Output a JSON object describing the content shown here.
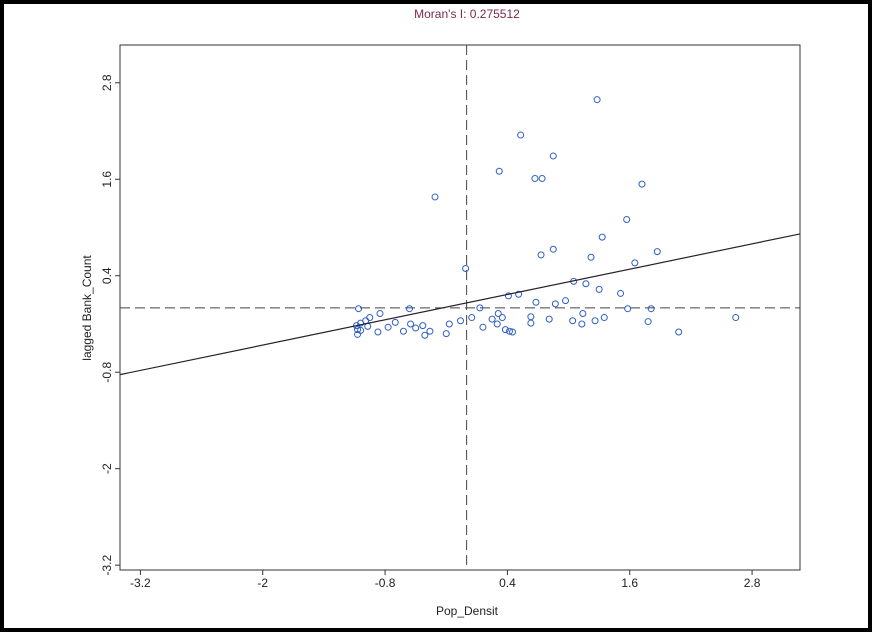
{
  "chart_data": {
    "type": "scatter",
    "title": "Moran's I: 0.275512",
    "x_label": "Pop_Densit",
    "y_label": "lagged Bank_Count",
    "xlim": [
      -3.4,
      3.27
    ],
    "ylim": [
      -3.26,
      3.27
    ],
    "xticks": [
      -3.2,
      -2,
      -0.8,
      0.4,
      1.6,
      2.8
    ],
    "yticks": [
      -3.2,
      -2,
      -0.8,
      0.4,
      1.6,
      2.8
    ],
    "color": "#2f5fc4",
    "x": [
      1.28,
      0.53,
      0.85,
      0.32,
      0.67,
      0.74,
      -0.31,
      1.72,
      1.57,
      1.33,
      0.85,
      0.73,
      -0.01,
      1.22,
      1.65,
      1.87,
      1.05,
      1.17,
      1.3,
      1.51,
      0.41,
      0.51,
      0.68,
      0.97,
      0.87,
      0.13,
      0.31,
      1.58,
      1.81,
      2.64,
      -0.56,
      -1.06,
      -0.85,
      -0.95,
      -0.99,
      -1.04,
      -0.55,
      -0.43,
      -0.06,
      -0.17,
      0.05,
      0.25,
      0.3,
      0.35,
      0.63,
      0.63,
      0.81,
      1.04,
      1.13,
      1.14,
      1.26,
      1.35,
      1.78,
      2.08,
      0.45,
      0.42,
      0.16,
      0.38,
      -0.2,
      -0.41,
      -0.62,
      -0.87,
      -1.04,
      -1.07,
      -1.07,
      -1.08,
      -0.97,
      -0.77,
      -0.7,
      -0.5,
      -0.36
    ],
    "y": [
      2.59,
      2.15,
      1.89,
      1.7,
      1.61,
      1.61,
      1.38,
      1.54,
      1.1,
      0.88,
      0.73,
      0.66,
      0.49,
      0.63,
      0.56,
      0.7,
      0.33,
      0.3,
      0.23,
      0.18,
      0.15,
      0.17,
      0.07,
      0.09,
      0.05,
      0.0,
      -0.07,
      -0.01,
      -0.01,
      -0.12,
      -0.01,
      -0.01,
      -0.07,
      -0.12,
      -0.16,
      -0.19,
      -0.2,
      -0.22,
      -0.16,
      -0.2,
      -0.12,
      -0.14,
      -0.2,
      -0.12,
      -0.11,
      -0.19,
      -0.14,
      -0.16,
      -0.2,
      -0.07,
      -0.16,
      -0.12,
      -0.17,
      -0.3,
      -0.3,
      -0.29,
      -0.24,
      -0.27,
      -0.32,
      -0.34,
      -0.29,
      -0.3,
      -0.28,
      -0.33,
      -0.27,
      -0.22,
      -0.23,
      -0.24,
      -0.18,
      -0.25,
      -0.29
    ],
    "fit_line": {
      "x": [
        -3.4,
        3.27
      ],
      "y": [
        -0.83,
        0.92
      ],
      "color": "#2a2030"
    },
    "mean_lines": {
      "x": 0,
      "y": 0
    }
  }
}
